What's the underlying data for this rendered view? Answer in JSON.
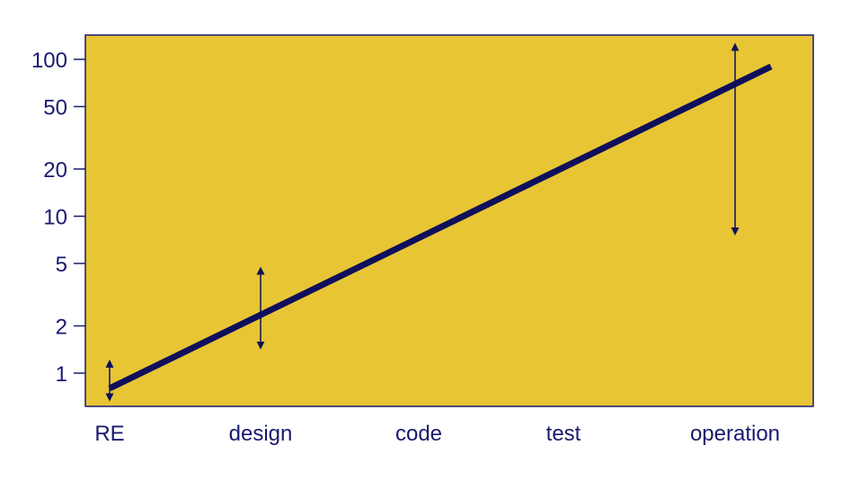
{
  "chart_data": {
    "type": "line",
    "title": "",
    "xlabel": "",
    "ylabel": "",
    "y_scale": "log",
    "ylim": [
      0.5,
      150
    ],
    "y_ticks": [
      {
        "value": 1,
        "label": "1"
      },
      {
        "value": 2,
        "label": "2"
      },
      {
        "value": 5,
        "label": "5"
      },
      {
        "value": 10,
        "label": "10"
      },
      {
        "value": 20,
        "label": "20"
      },
      {
        "value": 50,
        "label": "50"
      },
      {
        "value": 100,
        "label": "100"
      }
    ],
    "categories": [
      "RE",
      "design",
      "code",
      "test",
      "operation"
    ],
    "series": [
      {
        "x": [
          "RE",
          "operation"
        ],
        "values": [
          0.8,
          90
        ]
      }
    ],
    "ranges": [
      {
        "category": "RE",
        "low": 0.7,
        "high": 1.15
      },
      {
        "category": "design",
        "low": 1.5,
        "high": 4.5
      },
      {
        "category": "operation",
        "low": 8,
        "high": 120
      }
    ],
    "grid": false,
    "legend": "none",
    "colors": {
      "background": "#e8c534",
      "line": "#0f0f5c",
      "text": "#1a1a6e",
      "frame": "#1a1a6e"
    }
  }
}
